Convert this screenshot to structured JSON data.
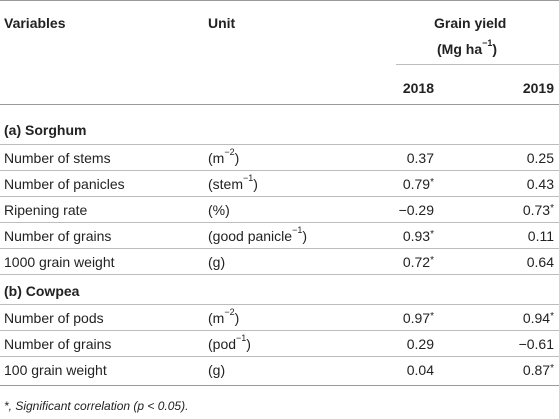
{
  "header": {
    "variables": "Variables",
    "unit": "Unit",
    "grain_yield": "Grain yield",
    "grain_yield_unit_base": "(Mg ha",
    "grain_yield_unit_sup": "−1",
    "grain_yield_unit_close": ")",
    "year1": "2018",
    "year2": "2019"
  },
  "sections": [
    {
      "title": "(a) Sorghum",
      "rows": [
        {
          "variable": "Number of stems",
          "unit_base": "(m",
          "unit_sup": "−2",
          "unit_close": ")",
          "v2018": "0.37",
          "s2018": "",
          "v2019": "0.25",
          "s2019": ""
        },
        {
          "variable": "Number of panicles",
          "unit_base": "(stem",
          "unit_sup": "−1",
          "unit_close": ")",
          "v2018": "0.79",
          "s2018": "*",
          "v2019": "0.43",
          "s2019": ""
        },
        {
          "variable": "Ripening rate",
          "unit_base": "(%)",
          "unit_sup": "",
          "unit_close": "",
          "v2018": "−0.29",
          "s2018": "",
          "v2019": "0.73",
          "s2019": "*"
        },
        {
          "variable": "Number of grains",
          "unit_base": "(good panicle",
          "unit_sup": "−1",
          "unit_close": ")",
          "v2018": "0.93",
          "s2018": "*",
          "v2019": "0.11",
          "s2019": ""
        },
        {
          "variable": "1000 grain weight",
          "unit_base": "(g)",
          "unit_sup": "",
          "unit_close": "",
          "v2018": "0.72",
          "s2018": "*",
          "v2019": "0.64",
          "s2019": ""
        }
      ]
    },
    {
      "title": "(b) Cowpea",
      "rows": [
        {
          "variable": "Number of pods",
          "unit_base": "(m",
          "unit_sup": "−2",
          "unit_close": ")",
          "v2018": "0.97",
          "s2018": "*",
          "v2019": "0.94",
          "s2019": "*"
        },
        {
          "variable": "Number of grains",
          "unit_base": "(pod",
          "unit_sup": "−1",
          "unit_close": ")",
          "v2018": "0.29",
          "s2018": "",
          "v2019": "−0.61",
          "s2019": ""
        },
        {
          "variable": "100 grain weight",
          "unit_base": "(g)",
          "unit_sup": "",
          "unit_close": "",
          "v2018": "0.04",
          "s2018": "",
          "v2019": "0.87",
          "s2019": "*"
        }
      ]
    }
  ],
  "footnote": "*, Significant correlation (p < 0.05)."
}
